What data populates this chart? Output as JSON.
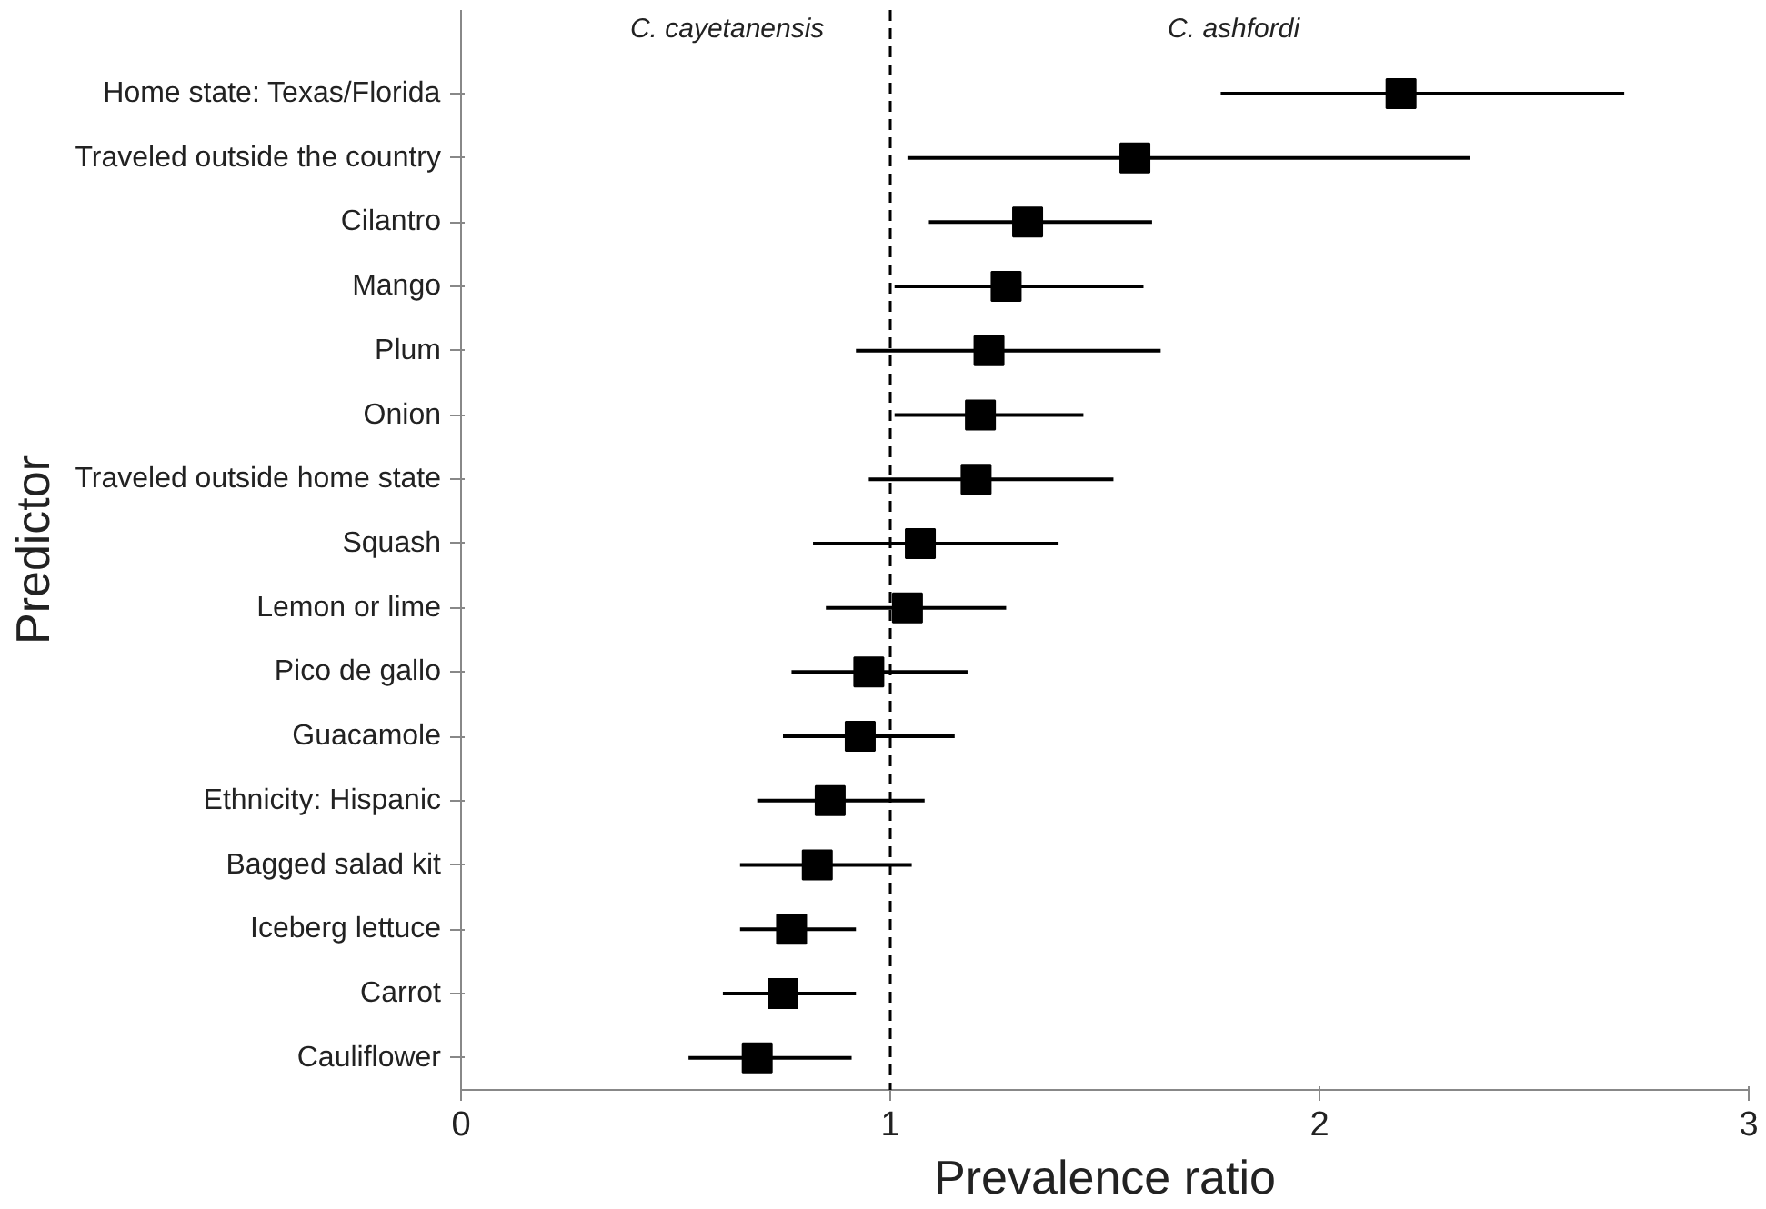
{
  "chart_data": {
    "type": "scatter",
    "orientation": "horizontal",
    "marker": "square",
    "color": "#000000",
    "grid": false,
    "categories": [
      "Home state: Texas/Florida",
      "Traveled outside the country",
      "Cilantro",
      "Mango",
      "Plum",
      "Onion",
      "Traveled outside home state",
      "Squash",
      "Lemon or lime",
      "Pico de gallo",
      "Guacamole",
      "Ethnicity: Hispanic",
      "Bagged salad kit",
      "Iceberg lettuce",
      "Carrot",
      "Cauliflower"
    ],
    "values": [
      2.19,
      1.57,
      1.32,
      1.27,
      1.23,
      1.21,
      1.2,
      1.07,
      1.04,
      0.95,
      0.93,
      0.86,
      0.83,
      0.77,
      0.75,
      0.69
    ],
    "errors": [
      [
        1.77,
        2.71
      ],
      [
        1.04,
        2.35
      ],
      [
        1.09,
        1.61
      ],
      [
        1.01,
        1.59
      ],
      [
        0.92,
        1.63
      ],
      [
        1.01,
        1.45
      ],
      [
        0.95,
        1.52
      ],
      [
        0.82,
        1.39
      ],
      [
        0.85,
        1.27
      ],
      [
        0.77,
        1.18
      ],
      [
        0.75,
        1.15
      ],
      [
        0.69,
        1.08
      ],
      [
        0.65,
        1.05
      ],
      [
        0.65,
        0.92
      ],
      [
        0.61,
        0.92
      ],
      [
        0.53,
        0.91
      ]
    ],
    "xlim": [
      0,
      3
    ],
    "xticks": [
      0,
      1,
      2,
      3
    ],
    "xlabel": "Prevalence ratio",
    "ylabel": "Predictor",
    "ref_lines": [
      {
        "axis": "x",
        "value": 1,
        "line_style": "dashed"
      }
    ],
    "annotations": [
      "C. cayetanensis",
      "C. ashfordi"
    ]
  }
}
